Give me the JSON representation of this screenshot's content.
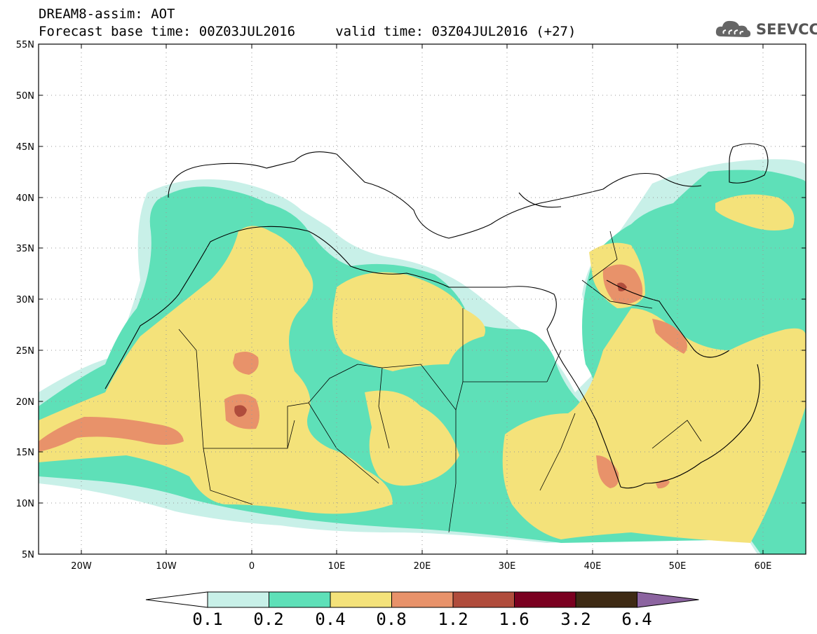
{
  "header": {
    "line1": "DREAM8-assim: AOT",
    "line2": "Forecast base time: 00Z03JUL2016     valid time: 03Z04JUL2016 (+27)"
  },
  "logo": {
    "text": "SEEVCCC",
    "icon": "cloud-icon"
  },
  "map": {
    "lon_range": [
      -25,
      65
    ],
    "lat_range": [
      5,
      55
    ],
    "lat_ticks": [
      "55N",
      "50N",
      "45N",
      "40N",
      "35N",
      "30N",
      "25N",
      "20N",
      "15N",
      "10N",
      "5N"
    ],
    "lon_ticks": [
      "20W",
      "10W",
      "0",
      "10E",
      "20E",
      "30E",
      "40E",
      "50E",
      "60E"
    ]
  },
  "colorbar": {
    "colors": [
      "#ffffff",
      "#c8f0e8",
      "#5ee0b8",
      "#f4e27a",
      "#e8926a",
      "#b04c3c",
      "#7a0020",
      "#3e2a14",
      "#8c64a0"
    ],
    "labels": [
      "0.1",
      "0.2",
      "0.4",
      "0.8",
      "1.2",
      "1.6",
      "3.2",
      "6.4"
    ]
  }
}
